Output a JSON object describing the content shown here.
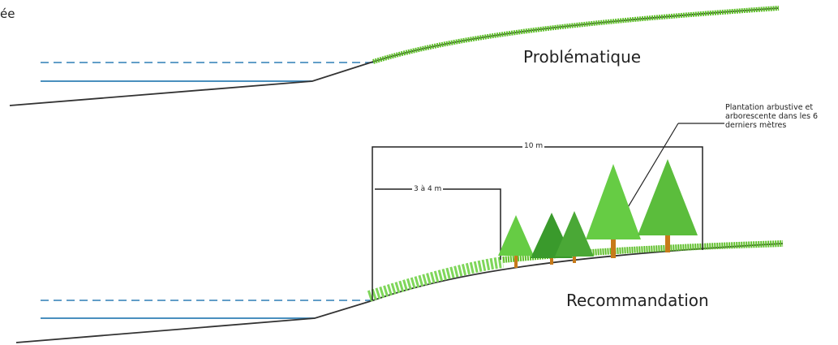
{
  "labels": {
    "corner": "ée",
    "problem": "Problématique",
    "recommendation": "Recommandation",
    "planting_note": "Plantation arbustive et arborescente dans les 6 derniers mètres",
    "dim_total": "10 m",
    "dim_partial": "3 à 4 m"
  },
  "colors": {
    "water": "#2f7fb5",
    "ground": "#333333",
    "grass": "#5fbf2a",
    "tree_light": "#66cc44",
    "tree_dark": "#3a9a2c",
    "trunk": "#c77a1a"
  }
}
